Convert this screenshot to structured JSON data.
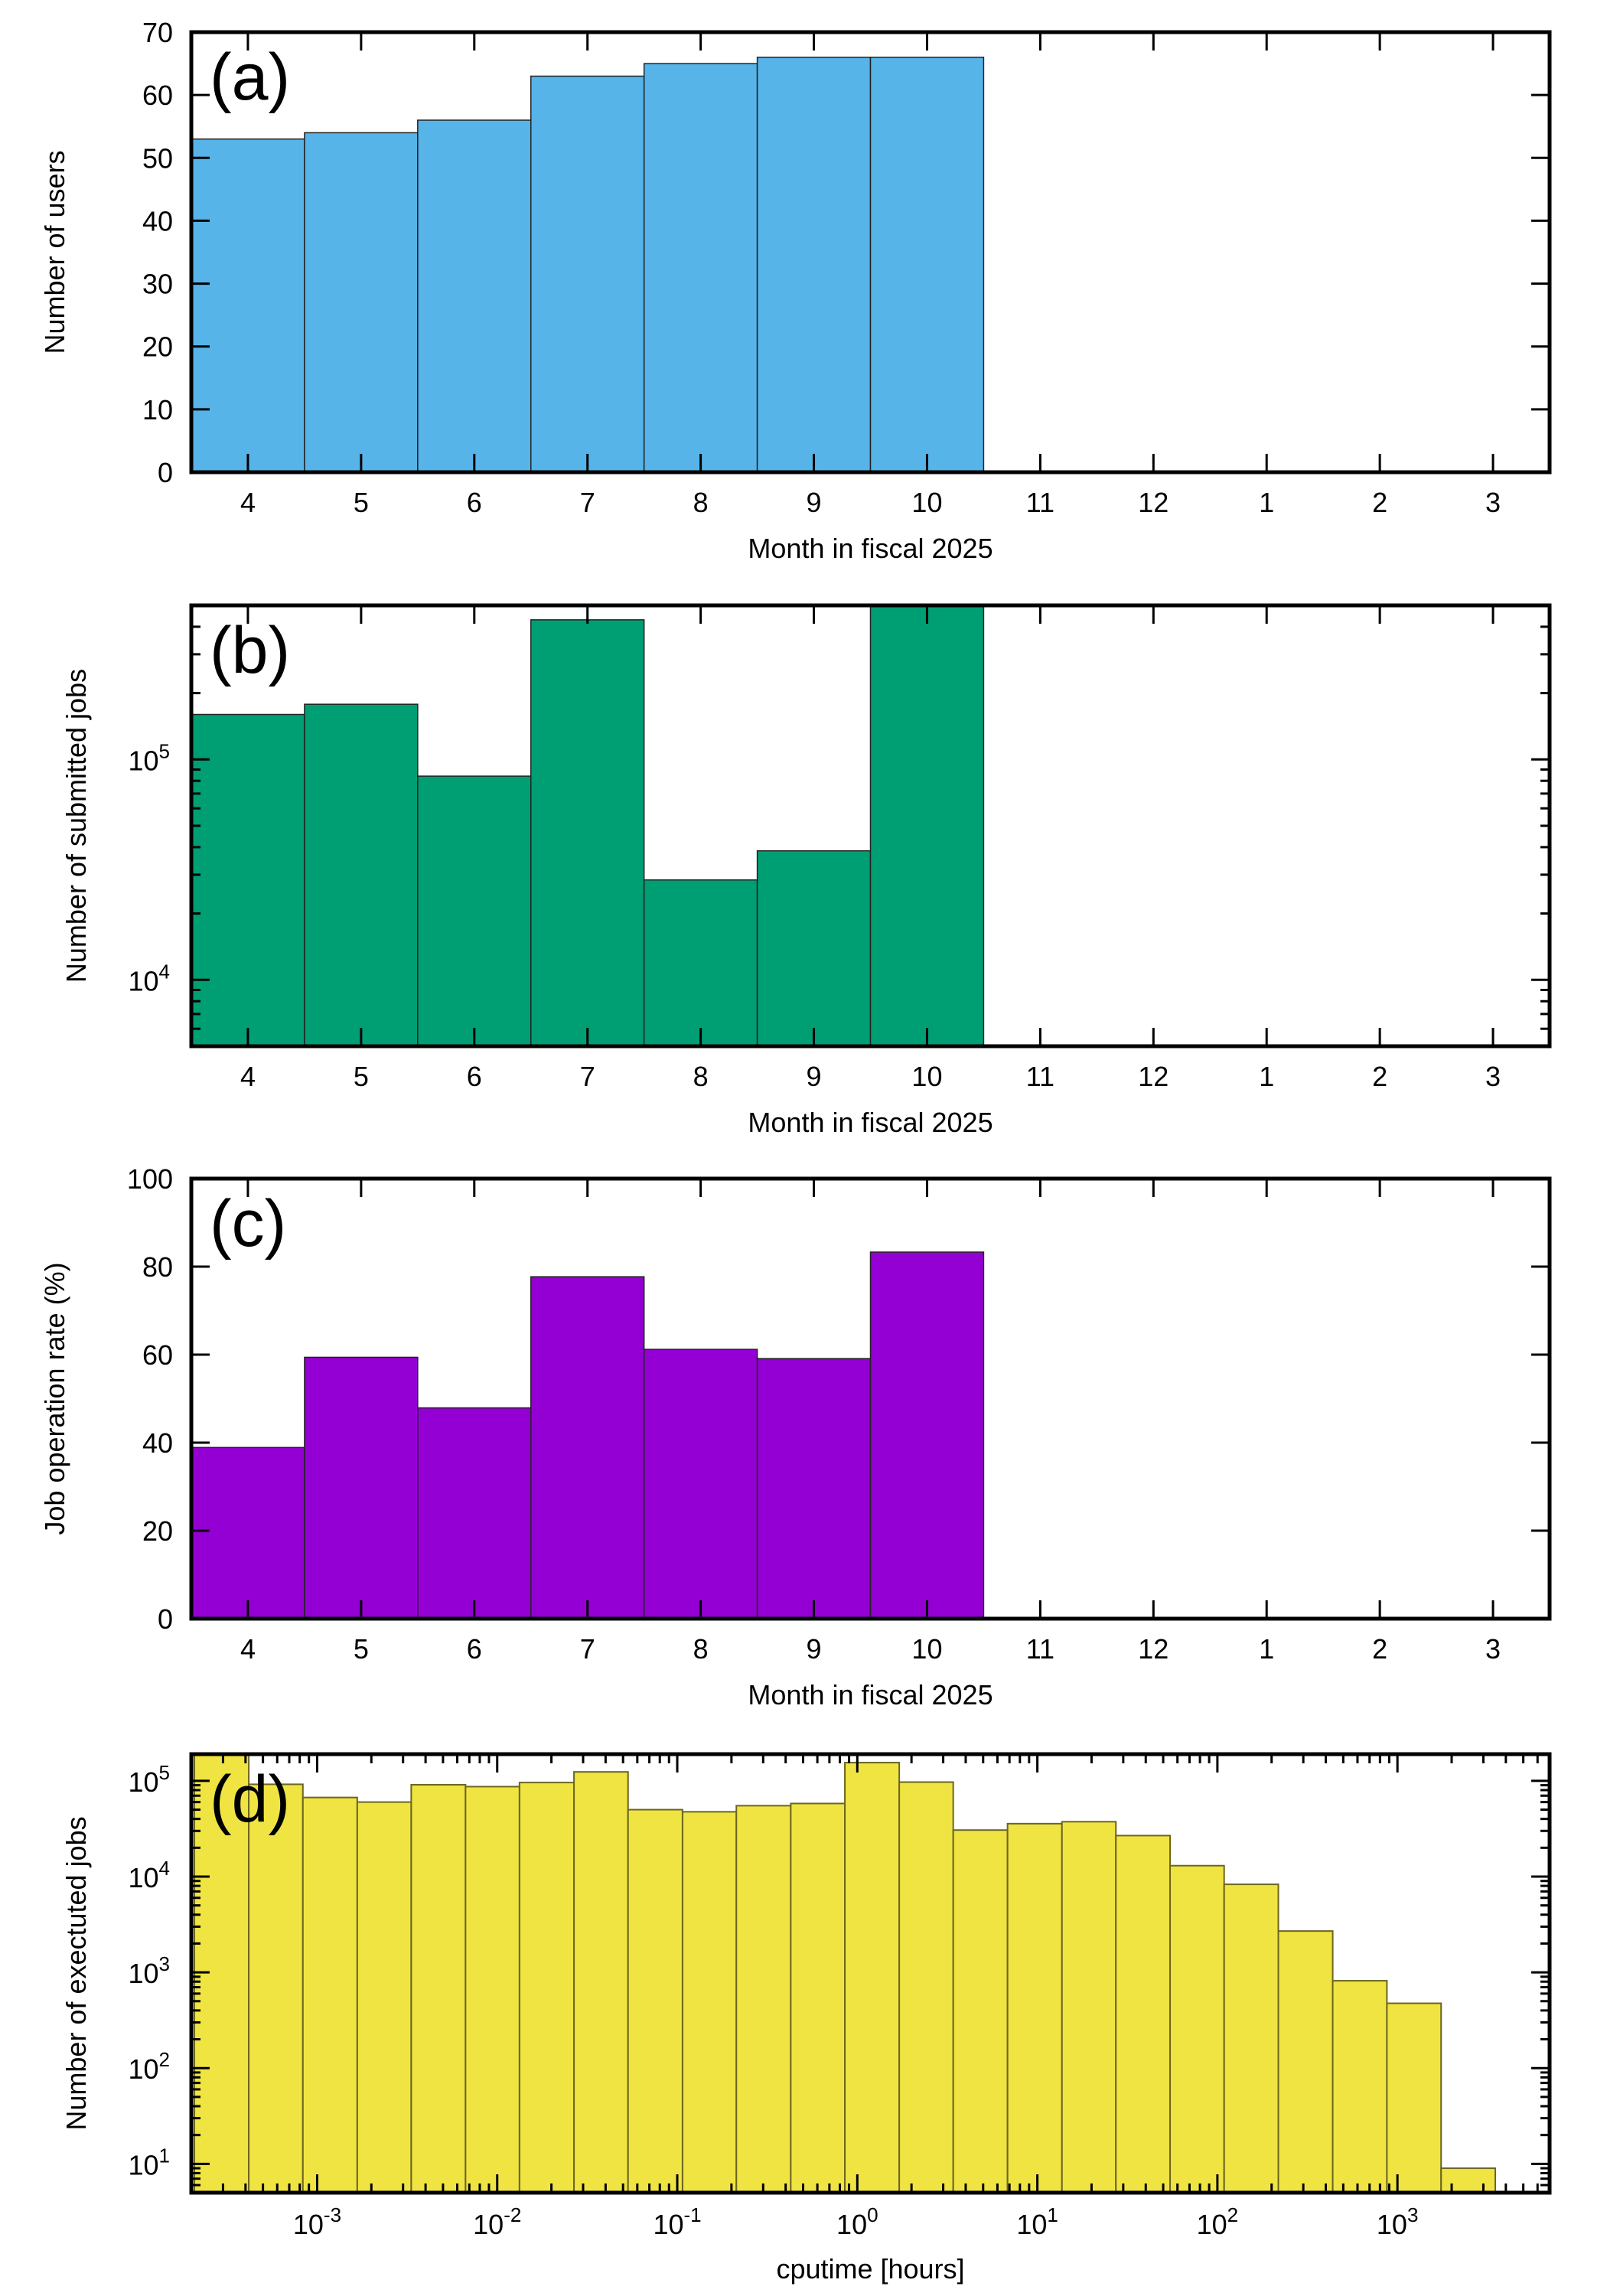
{
  "figure": {
    "background": "#ffffff"
  },
  "chart_data": [
    {
      "id": "a",
      "type": "bar",
      "panel_label": "(a)",
      "title": "",
      "xlabel": "Month in fiscal 2025",
      "ylabel": "Number of users",
      "yscale": "linear",
      "ylim": [
        0,
        70
      ],
      "yticks": [
        0,
        10,
        20,
        30,
        40,
        50,
        60,
        70
      ],
      "ytick_labels": [
        "0",
        "10",
        "20",
        "30",
        "40",
        "50",
        "60",
        "70"
      ],
      "categories": [
        "4",
        "5",
        "6",
        "7",
        "8",
        "9",
        "10",
        "11",
        "12",
        "1",
        "2",
        "3"
      ],
      "values": [
        53,
        54,
        56,
        63,
        65,
        66,
        66,
        null,
        null,
        null,
        null,
        null
      ],
      "color": "#56b4e9",
      "grid": false,
      "legend": "none"
    },
    {
      "id": "b",
      "type": "bar",
      "panel_label": "(b)",
      "title": "",
      "xlabel": "Month in fiscal 2025",
      "ylabel": "Number of submitted jobs",
      "yscale": "log",
      "ylim": [
        5000,
        500000
      ],
      "yticks": [
        10000,
        100000
      ],
      "ytick_labels": [
        {
          "base": "10",
          "exp": "4"
        },
        {
          "base": "10",
          "exp": "5"
        }
      ],
      "categories": [
        "4",
        "5",
        "6",
        "7",
        "8",
        "9",
        "10",
        "11",
        "12",
        "1",
        "2",
        "3"
      ],
      "values": [
        160000,
        178000,
        84000,
        430000,
        28400,
        38500,
        500000,
        null,
        null,
        null,
        null,
        null
      ],
      "note": "Month 10 bar reaches the top of the axis (clipped)",
      "color": "#009e73",
      "grid": false,
      "legend": "none"
    },
    {
      "id": "c",
      "type": "bar",
      "panel_label": "(c)",
      "title": "",
      "xlabel": "Month in fiscal 2025",
      "ylabel": "Job operation rate (%)",
      "yscale": "linear",
      "ylim": [
        0,
        100
      ],
      "yticks": [
        0,
        20,
        40,
        60,
        80,
        100
      ],
      "ytick_labels": [
        "0",
        "20",
        "40",
        "60",
        "80",
        "100"
      ],
      "categories": [
        "4",
        "5",
        "6",
        "7",
        "8",
        "9",
        "10",
        "11",
        "12",
        "1",
        "2",
        "3"
      ],
      "values": [
        38.9,
        59.4,
        47.9,
        77.7,
        61.2,
        59.1,
        83.3,
        null,
        null,
        null,
        null,
        null
      ],
      "color": "#9400d3",
      "grid": false,
      "legend": "none"
    },
    {
      "id": "d",
      "type": "bar",
      "subtype": "histogram",
      "panel_label": "(d)",
      "title": "",
      "xlabel": "cputime [hours]",
      "ylabel": "Number of exectuted jobs",
      "xscale": "log",
      "yscale": "log",
      "xlim": [
        0.0002,
        7000
      ],
      "ylim": [
        5,
        190000
      ],
      "xticks": [
        0.001,
        0.01,
        0.1,
        1,
        10,
        100,
        1000
      ],
      "xtick_labels": [
        {
          "base": "10",
          "exp": "-3"
        },
        {
          "base": "10",
          "exp": "-2"
        },
        {
          "base": "10",
          "exp": "-1"
        },
        {
          "base": "10",
          "exp": "0"
        },
        {
          "base": "10",
          "exp": "1"
        },
        {
          "base": "10",
          "exp": "2"
        },
        {
          "base": "10",
          "exp": "3"
        }
      ],
      "yticks": [
        10,
        100,
        1000,
        10000,
        100000
      ],
      "ytick_labels": [
        {
          "base": "10",
          "exp": "1"
        },
        {
          "base": "10",
          "exp": "2"
        },
        {
          "base": "10",
          "exp": "3"
        },
        {
          "base": "10",
          "exp": "4"
        },
        {
          "base": "10",
          "exp": "5"
        }
      ],
      "bin_edges": [
        0.000208,
        0.000417,
        0.000833,
        0.00167,
        0.00333,
        0.00667,
        0.0133,
        0.0267,
        0.0533,
        0.107,
        0.213,
        0.427,
        0.853,
        1.71,
        3.41,
        6.83,
        13.7,
        27.3,
        54.6,
        109,
        218,
        437,
        874,
        1748,
        3495
      ],
      "values": [
        190000,
        92000,
        67000,
        60000,
        91000,
        87000,
        96000,
        124000,
        50000,
        47500,
        55000,
        58000,
        155000,
        97000,
        30600,
        35700,
        37400,
        26800,
        13000,
        8300,
        2700,
        817,
        475,
        9
      ],
      "note": "First bar reaches the top of the axis (clipped)",
      "color": "#f0e442",
      "grid": false,
      "legend": "none"
    }
  ]
}
